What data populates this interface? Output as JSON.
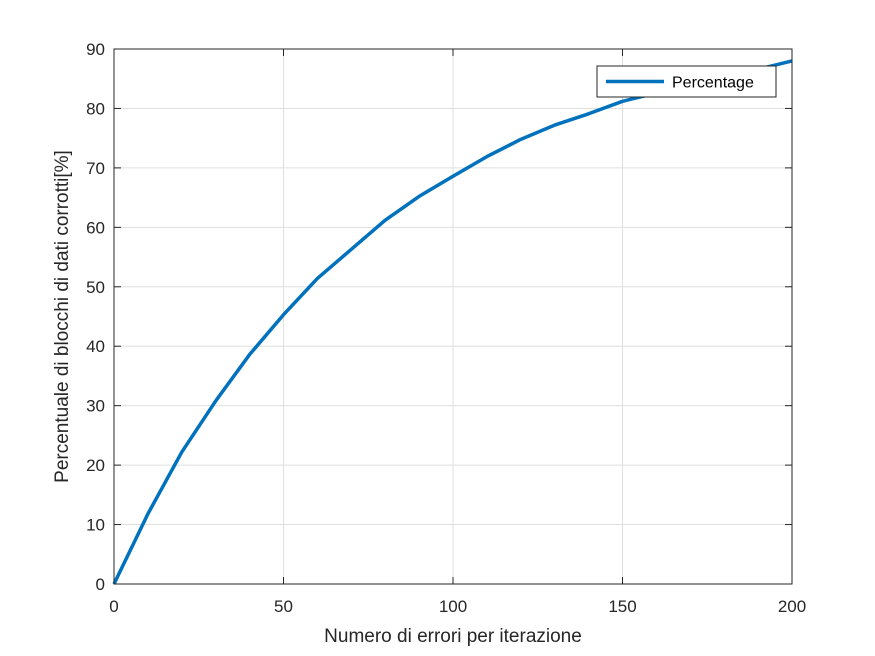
{
  "chart_data": {
    "type": "line",
    "title": "",
    "xlabel": "Numero di errori per iterazione",
    "ylabel": "Percentuale di blocchi di dati corrotti[%]",
    "xlim": [
      0,
      200
    ],
    "ylim": [
      0,
      90
    ],
    "xticks": [
      0,
      50,
      100,
      150,
      200
    ],
    "yticks": [
      0,
      10,
      20,
      30,
      40,
      50,
      60,
      70,
      80,
      90
    ],
    "xtick_labels": [
      "0",
      "50",
      "100",
      "150",
      "200"
    ],
    "ytick_labels": [
      "0",
      "10",
      "20",
      "30",
      "40",
      "50",
      "60",
      "70",
      "80",
      "90"
    ],
    "grid": true,
    "legend_position": "top-right",
    "series": [
      {
        "name": "Percentage",
        "color": "#0072BD",
        "x": [
          0,
          10,
          20,
          30,
          40,
          50,
          60,
          70,
          80,
          90,
          100,
          110,
          120,
          130,
          140,
          150,
          160,
          170,
          180,
          190,
          200
        ],
        "y": [
          0,
          11.8,
          22.2,
          30.8,
          38.6,
          45.3,
          51.4,
          56.3,
          61.2,
          65.2,
          68.6,
          71.9,
          74.8,
          77.2,
          79.1,
          81.2,
          82.6,
          84.2,
          85.3,
          86.6,
          88.0
        ]
      }
    ]
  }
}
